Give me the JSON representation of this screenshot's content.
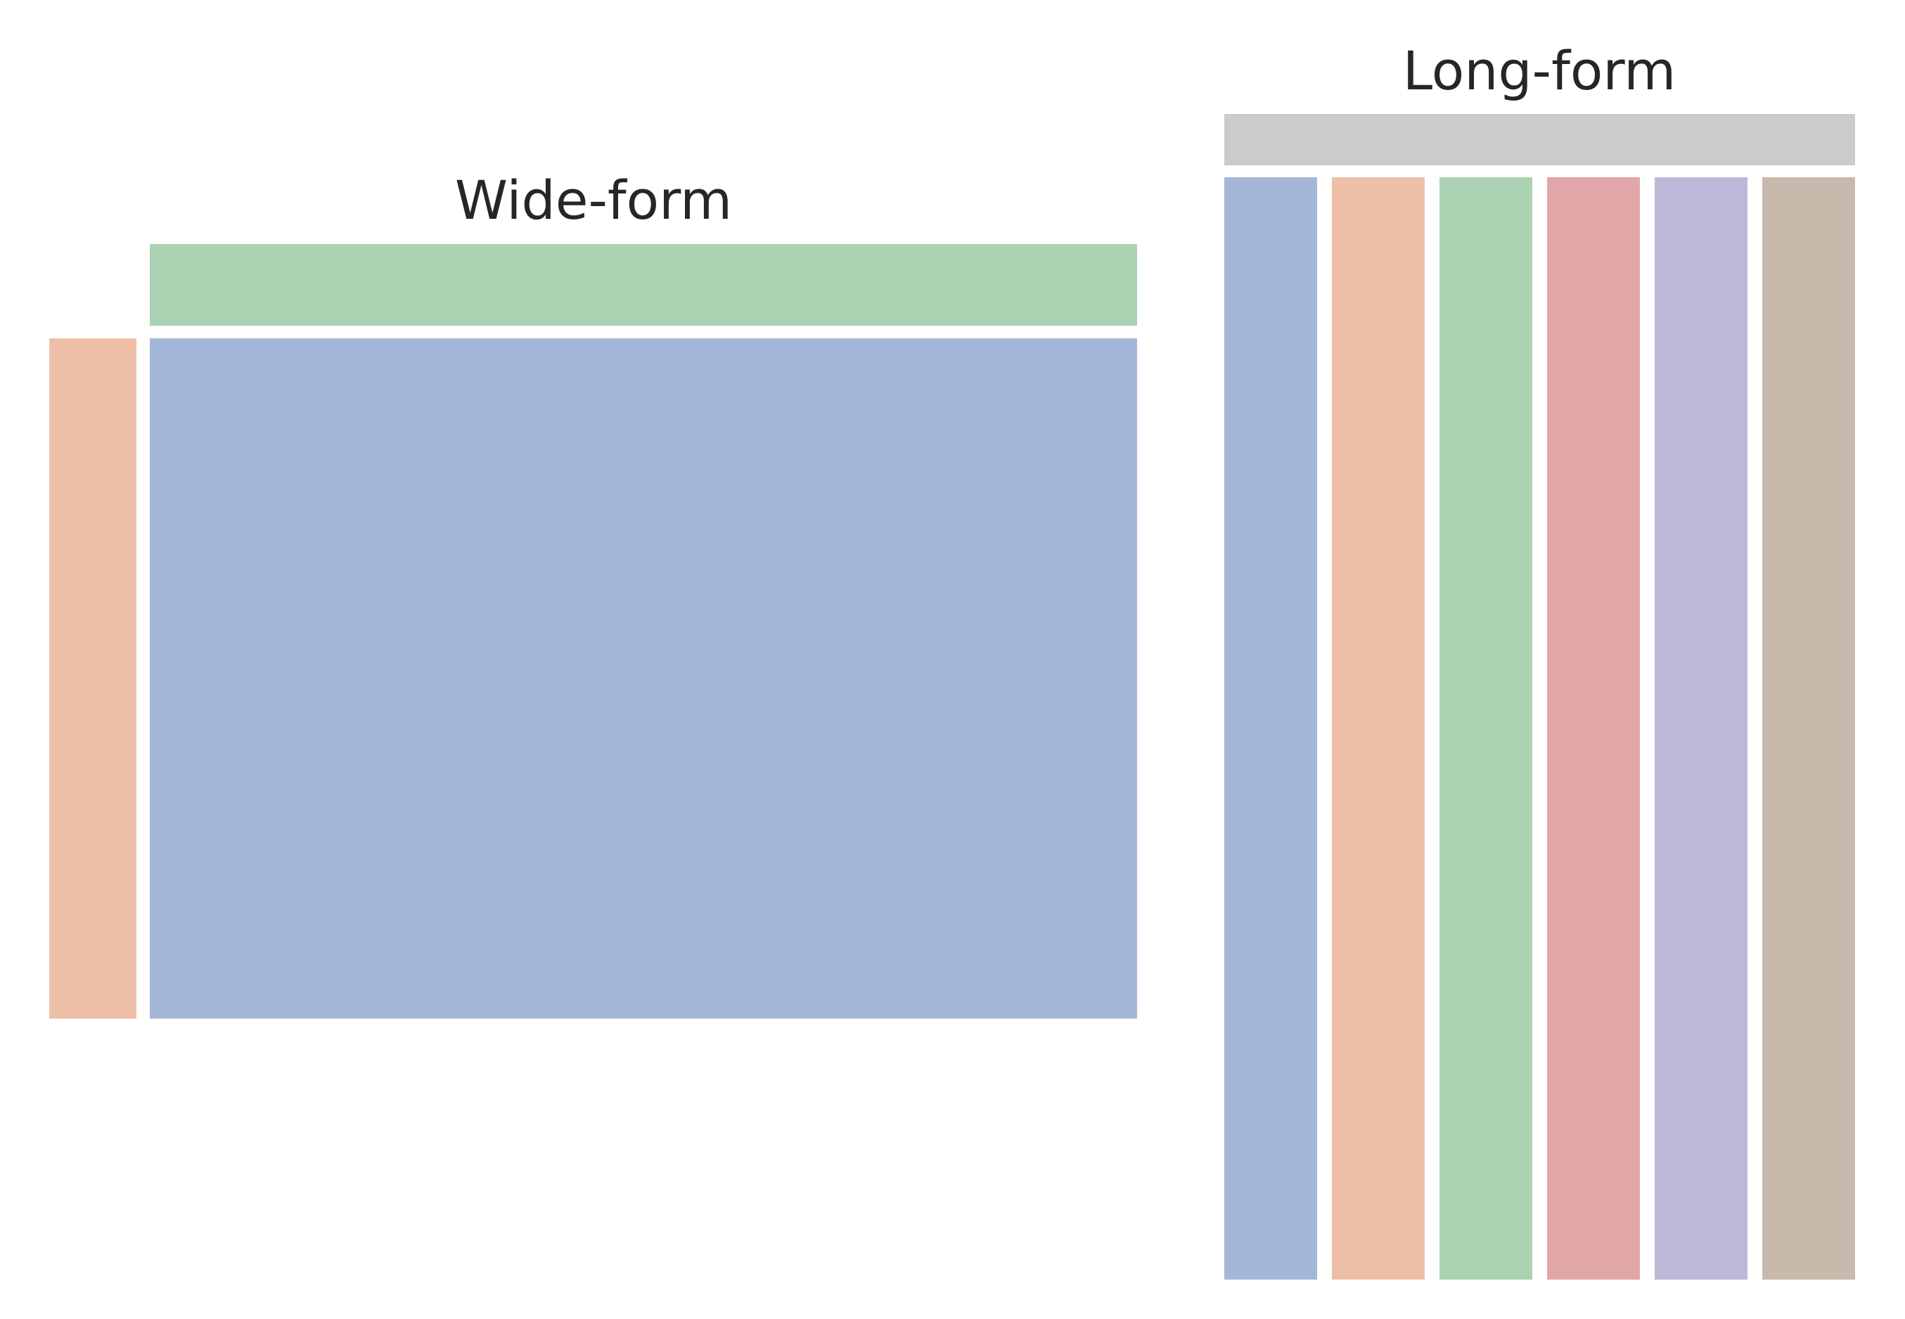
{
  "wide_form": {
    "title": "Wide-form",
    "colors": {
      "header": "#aad2b3",
      "index": "#edbfa6",
      "values": "#a5b7d8"
    }
  },
  "long_form": {
    "title": "Long-form",
    "header_color": "#cbcbcb",
    "columns": [
      {
        "color": "#a5b7d8"
      },
      {
        "color": "#edbfa6"
      },
      {
        "color": "#aad2b3"
      },
      {
        "color": "#e1a6a7"
      },
      {
        "color": "#bfb7d8"
      },
      {
        "color": "#c8b9ad"
      }
    ]
  }
}
